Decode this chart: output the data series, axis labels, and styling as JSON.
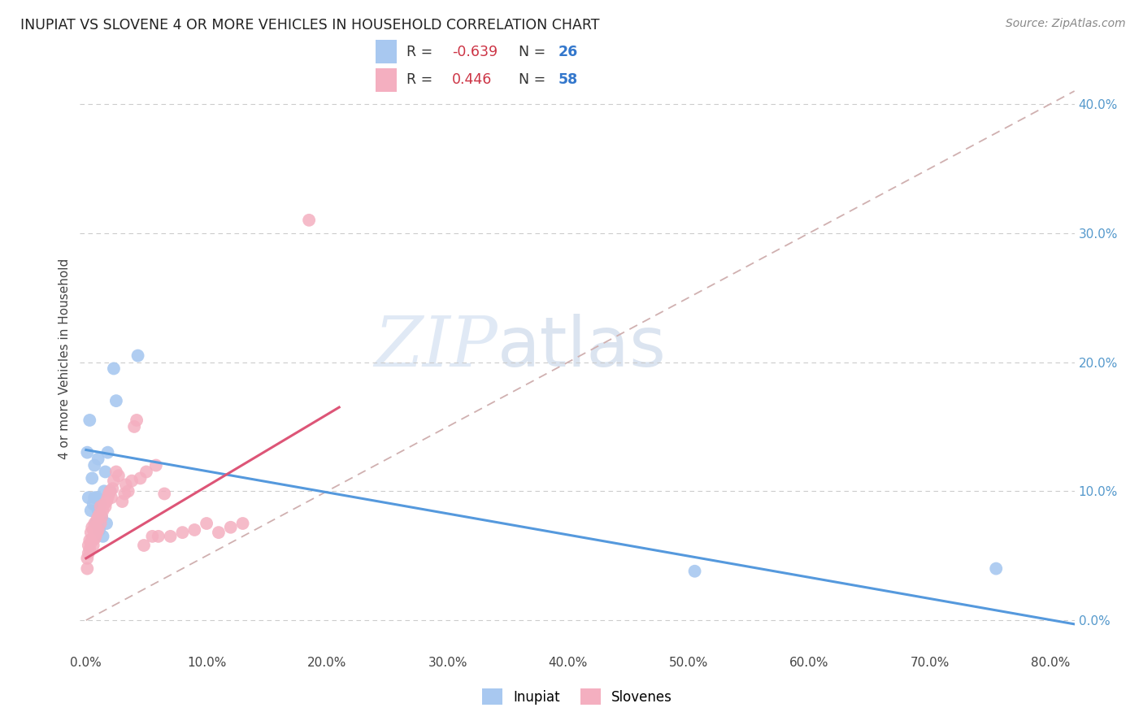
{
  "title": "INUPIAT VS SLOVENE 4 OR MORE VEHICLES IN HOUSEHOLD CORRELATION CHART",
  "source": "Source: ZipAtlas.com",
  "ylabel": "4 or more Vehicles in Household",
  "xlim": [
    -0.005,
    0.82
  ],
  "ylim": [
    -0.025,
    0.43
  ],
  "xtick_vals": [
    0.0,
    0.1,
    0.2,
    0.3,
    0.4,
    0.5,
    0.6,
    0.7,
    0.8
  ],
  "ytick_vals": [
    0.0,
    0.1,
    0.2,
    0.3,
    0.4
  ],
  "inupiat_R": -0.639,
  "inupiat_N": 26,
  "slovene_R": 0.446,
  "slovene_N": 58,
  "inupiat_color": "#a8c8f0",
  "slovene_color": "#f4afc0",
  "inupiat_line_color": "#5599dd",
  "slovene_line_color": "#dd5577",
  "diagonal_color": "#d0b0b0",
  "background_color": "#ffffff",
  "grid_color": "#cccccc",
  "watermark_zip": "ZIP",
  "watermark_atlas": "atlas",
  "legend_R_color": "#cc3344",
  "legend_N_color": "#3377cc",
  "inupiat_x": [
    0.001,
    0.002,
    0.003,
    0.004,
    0.005,
    0.006,
    0.007,
    0.007,
    0.008,
    0.009,
    0.01,
    0.01,
    0.011,
    0.012,
    0.013,
    0.014,
    0.015,
    0.016,
    0.017,
    0.018,
    0.02,
    0.023,
    0.025,
    0.043,
    0.505,
    0.755
  ],
  "inupiat_y": [
    0.13,
    0.095,
    0.155,
    0.085,
    0.11,
    0.09,
    0.12,
    0.095,
    0.075,
    0.095,
    0.125,
    0.085,
    0.07,
    0.09,
    0.08,
    0.065,
    0.1,
    0.115,
    0.075,
    0.13,
    0.1,
    0.195,
    0.17,
    0.205,
    0.038,
    0.04
  ],
  "slovene_x": [
    0.001,
    0.001,
    0.002,
    0.002,
    0.003,
    0.003,
    0.004,
    0.004,
    0.005,
    0.005,
    0.006,
    0.006,
    0.007,
    0.007,
    0.008,
    0.008,
    0.009,
    0.009,
    0.01,
    0.01,
    0.011,
    0.012,
    0.012,
    0.013,
    0.014,
    0.015,
    0.016,
    0.017,
    0.018,
    0.019,
    0.02,
    0.021,
    0.022,
    0.023,
    0.025,
    0.027,
    0.03,
    0.032,
    0.033,
    0.035,
    0.038,
    0.04,
    0.042,
    0.045,
    0.048,
    0.05,
    0.055,
    0.058,
    0.06,
    0.065,
    0.07,
    0.08,
    0.09,
    0.1,
    0.11,
    0.12,
    0.13,
    0.185
  ],
  "slovene_y": [
    0.048,
    0.04,
    0.052,
    0.058,
    0.055,
    0.062,
    0.06,
    0.068,
    0.063,
    0.072,
    0.058,
    0.07,
    0.063,
    0.075,
    0.065,
    0.072,
    0.068,
    0.078,
    0.07,
    0.08,
    0.082,
    0.075,
    0.088,
    0.08,
    0.085,
    0.09,
    0.088,
    0.092,
    0.095,
    0.098,
    0.1,
    0.095,
    0.102,
    0.108,
    0.115,
    0.112,
    0.092,
    0.098,
    0.105,
    0.1,
    0.108,
    0.15,
    0.155,
    0.11,
    0.058,
    0.115,
    0.065,
    0.12,
    0.065,
    0.098,
    0.065,
    0.068,
    0.07,
    0.075,
    0.068,
    0.072,
    0.075,
    0.31
  ],
  "inupiat_line_x0": 0.0,
  "inupiat_line_x1": 0.82,
  "inupiat_line_y0": 0.132,
  "inupiat_line_y1": -0.003,
  "slovene_line_x0": 0.0,
  "slovene_line_x1": 0.21,
  "slovene_line_y0": 0.048,
  "slovene_line_y1": 0.165
}
